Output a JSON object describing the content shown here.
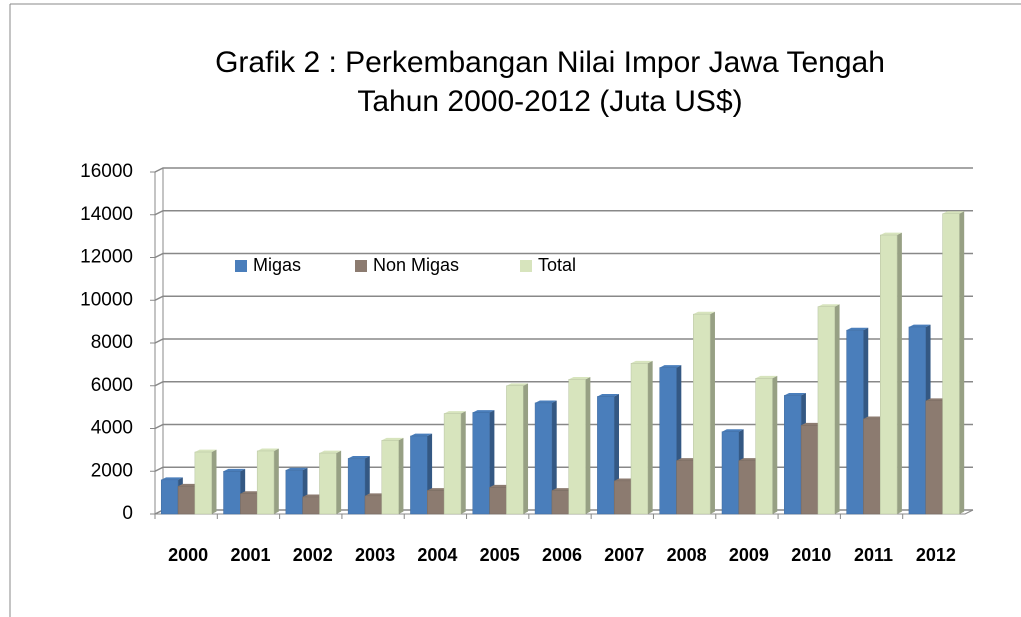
{
  "chart_data": {
    "type": "bar3d",
    "title": [
      "Grafik 2 : Perkembangan Nilai Impor Jawa Tengah",
      "Tahun 2000-2012 (Juta US$)"
    ],
    "categories": [
      "2000",
      "2001",
      "2002",
      "2003",
      "2004",
      "2005",
      "2006",
      "2007",
      "2008",
      "2009",
      "2010",
      "2011",
      "2012"
    ],
    "series": [
      {
        "name": "Migas",
        "color": "#4a7ebb",
        "values": [
          1600,
          2000,
          2050,
          2600,
          3650,
          4750,
          5200,
          5500,
          6850,
          3850,
          5550,
          8600,
          8750
        ]
      },
      {
        "name": "Non Migas",
        "color": "#8c7b70",
        "values": [
          1300,
          950,
          800,
          850,
          1100,
          1250,
          1100,
          1550,
          2500,
          2500,
          4150,
          4450,
          5300
        ]
      },
      {
        "name": "Total",
        "color": "#d7e4bd",
        "values": [
          2900,
          2950,
          2850,
          3450,
          4700,
          6000,
          6300,
          7050,
          9350,
          6350,
          9700,
          13050,
          14050
        ]
      }
    ],
    "ylim": [
      0,
      16000
    ],
    "yticks": [
      0,
      2000,
      4000,
      6000,
      8000,
      10000,
      12000,
      14000,
      16000
    ],
    "grid": true,
    "legend": "top-left"
  }
}
